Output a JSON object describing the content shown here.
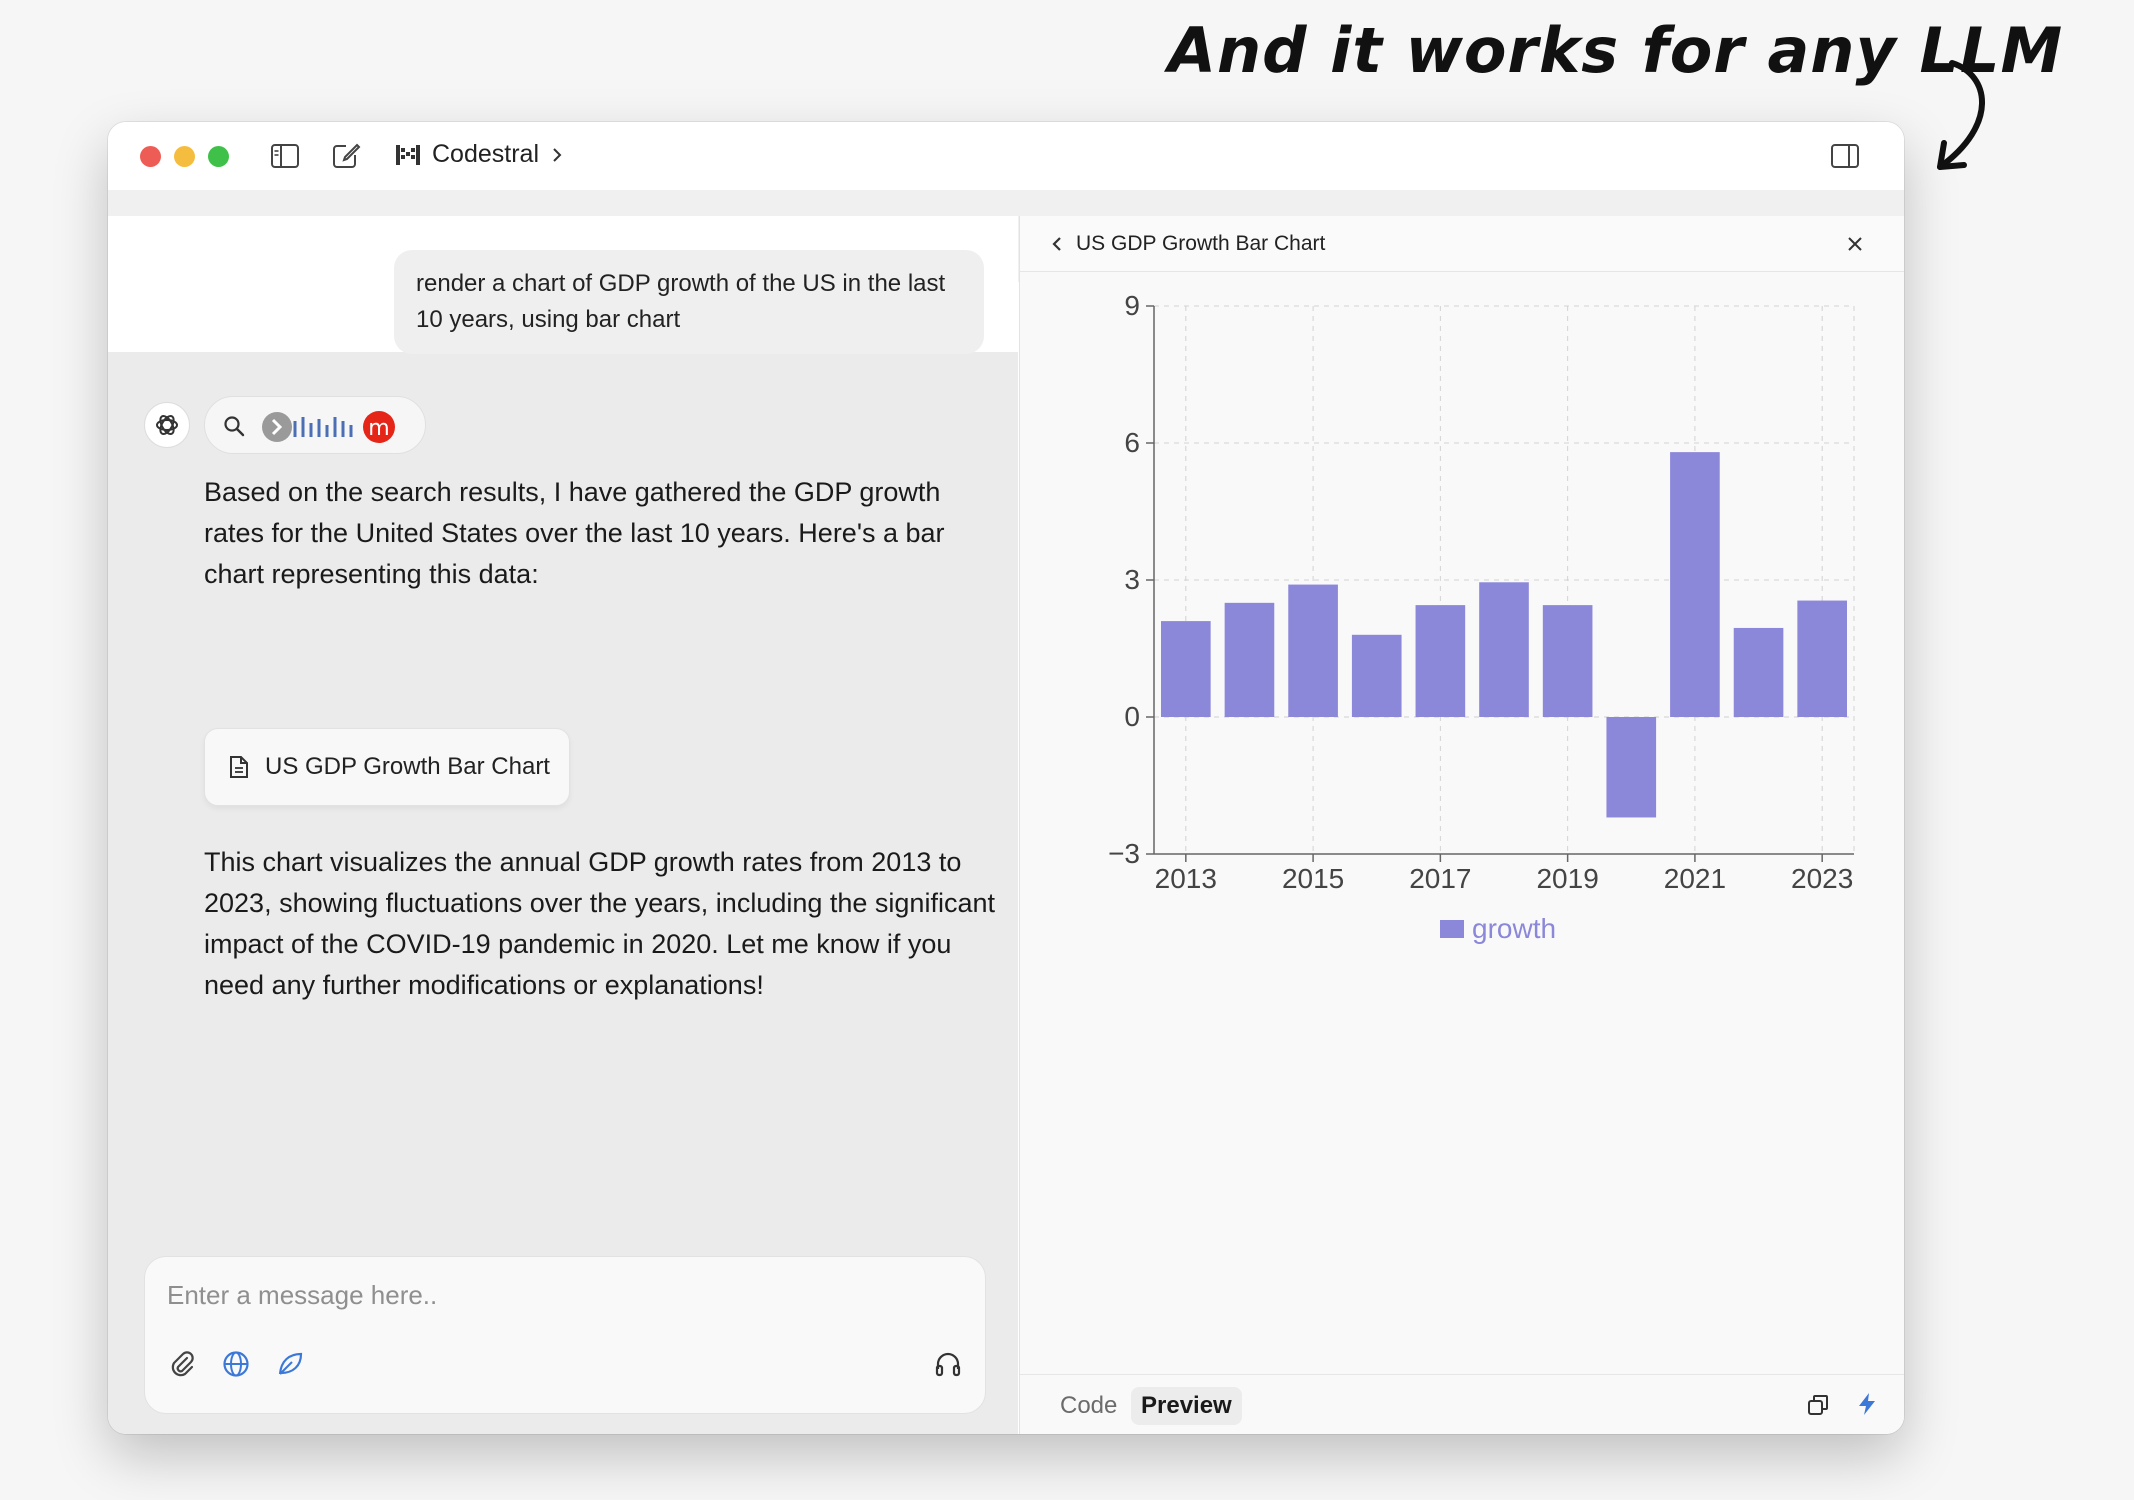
{
  "headline": "And it works for any LLM",
  "window": {
    "model_name": "Codestral"
  },
  "chat": {
    "user_message": "render a chart of GDP growth of the US in the last 10 years, using bar chart",
    "ai_intro": "Based on the search results, I have gathered the GDP growth rates for the United States over the last 10 years. Here's a bar chart representing this data:",
    "artifact_card_label": "US GDP Growth Bar Chart",
    "ai_outro": "This chart visualizes the annual GDP growth rates from 2013 to 2023, showing fluctuations over the years, including the significant impact of the COVID-19 pandemic in 2020. Let me know if you need any further modifications or explanations!",
    "composer_placeholder": "Enter a message here.."
  },
  "artifact": {
    "title": "US GDP Growth Bar Chart",
    "tab_code": "Code",
    "tab_preview": "Preview"
  },
  "colors": {
    "bar": "#8b87d9",
    "traffic_red": "#ee5d55",
    "traffic_yellow": "#f5bd3f",
    "traffic_green": "#3fc049",
    "accent_blue": "#3b78d8"
  },
  "icons": [
    "sidebar-icon",
    "compose-icon",
    "model-logo-icon",
    "chevron-right-icon",
    "panel-toggle-icon",
    "openai-icon",
    "search-icon",
    "document-icon",
    "paperclip-icon",
    "globe-icon",
    "leaf-icon",
    "headphones-icon",
    "chevron-left-icon",
    "close-icon",
    "copy-icon",
    "bolt-icon"
  ],
  "chart_data": {
    "type": "bar",
    "categories": [
      "2013",
      "2014",
      "2015",
      "2016",
      "2017",
      "2018",
      "2019",
      "2020",
      "2021",
      "2022",
      "2023"
    ],
    "series": [
      {
        "name": "growth",
        "values": [
          2.1,
          2.5,
          2.9,
          1.8,
          2.45,
          2.95,
          2.45,
          -2.2,
          5.8,
          1.95,
          2.55
        ]
      }
    ],
    "xticks": [
      "2013",
      "2015",
      "2017",
      "2019",
      "2021",
      "2023"
    ],
    "yticks": [
      -3,
      0,
      3,
      6,
      9
    ],
    "ylim": [
      -3,
      9
    ],
    "grid": true,
    "legend": "bottom-center"
  }
}
